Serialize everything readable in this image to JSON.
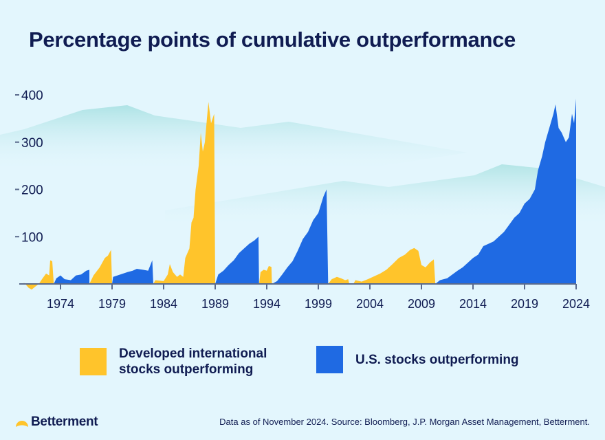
{
  "title": "Percentage points of cumulative outperformance",
  "colors": {
    "international": "#ffc42b",
    "us": "#1f6ae3",
    "text": "#101c52",
    "background": "#e3f6fd",
    "mountain": "#b5e6e8"
  },
  "chart_data": {
    "type": "area",
    "title": "Percentage points of cumulative outperformance",
    "xlim": [
      1970,
      2024
    ],
    "ylim": [
      0,
      400
    ],
    "x_ticks": [
      "1974",
      "1979",
      "1984",
      "1989",
      "1994",
      "1999",
      "2004",
      "2009",
      "2014",
      "2019",
      "2024"
    ],
    "y_ticks": [
      "100",
      "200",
      "300",
      "400"
    ],
    "grid": false,
    "legend_position": "bottom",
    "series": [
      {
        "name": "Developed international stocks outperforming",
        "key": "international",
        "segments": [
          [
            [
              1970.0,
              0
            ],
            [
              1970.5,
              2
            ],
            [
              1970.9,
              -8
            ],
            [
              1971.2,
              -12
            ],
            [
              1971.6,
              -5
            ],
            [
              1971.9,
              0
            ],
            [
              1972.2,
              10
            ],
            [
              1972.6,
              22
            ],
            [
              1972.9,
              18
            ],
            [
              1973.0,
              50
            ],
            [
              1973.2,
              48
            ],
            [
              1973.35,
              0
            ]
          ],
          [
            [
              1976.8,
              0
            ],
            [
              1977.2,
              18
            ],
            [
              1977.8,
              35
            ],
            [
              1978.3,
              55
            ],
            [
              1978.6,
              60
            ],
            [
              1978.9,
              72
            ],
            [
              1979.0,
              0
            ]
          ],
          [
            [
              1983.0,
              0
            ],
            [
              1983.2,
              8
            ],
            [
              1984.0,
              6
            ],
            [
              1984.4,
              20
            ],
            [
              1984.6,
              42
            ],
            [
              1984.9,
              25
            ],
            [
              1985.3,
              15
            ],
            [
              1985.6,
              20
            ],
            [
              1985.9,
              15
            ],
            [
              1986.1,
              55
            ],
            [
              1986.5,
              75
            ],
            [
              1986.7,
              130
            ],
            [
              1986.9,
              140
            ],
            [
              1987.1,
              200
            ],
            [
              1987.4,
              250
            ],
            [
              1987.6,
              320
            ],
            [
              1987.8,
              280
            ],
            [
              1988.0,
              300
            ],
            [
              1988.2,
              350
            ],
            [
              1988.35,
              385
            ],
            [
              1988.6,
              340
            ],
            [
              1988.9,
              360
            ],
            [
              1989.0,
              0
            ]
          ],
          [
            [
              1993.25,
              0
            ],
            [
              1993.4,
              25
            ],
            [
              1993.7,
              30
            ],
            [
              1994.0,
              28
            ],
            [
              1994.2,
              38
            ],
            [
              1994.45,
              36
            ],
            [
              1994.5,
              0
            ]
          ],
          [
            [
              1999.95,
              0
            ],
            [
              2000.3,
              10
            ],
            [
              2000.8,
              15
            ],
            [
              2001.2,
              12
            ],
            [
              2001.6,
              8
            ],
            [
              2001.9,
              10
            ],
            [
              2002.0,
              0
            ],
            [
              2002.4,
              0
            ],
            [
              2002.6,
              8
            ],
            [
              2003.2,
              5
            ],
            [
              2003.8,
              10
            ],
            [
              2004.4,
              16
            ],
            [
              2005.0,
              22
            ],
            [
              2005.6,
              30
            ],
            [
              2006.2,
              42
            ],
            [
              2006.8,
              55
            ],
            [
              2007.4,
              62
            ],
            [
              2007.9,
              72
            ],
            [
              2008.3,
              76
            ],
            [
              2008.7,
              70
            ],
            [
              2009.0,
              40
            ],
            [
              2009.4,
              35
            ],
            [
              2009.8,
              45
            ],
            [
              2010.2,
              52
            ],
            [
              2010.35,
              0
            ]
          ]
        ]
      },
      {
        "name": "U.S. stocks outperforming",
        "key": "us",
        "segments": [
          [
            [
              1973.35,
              0
            ],
            [
              1973.6,
              12
            ],
            [
              1974.0,
              18
            ],
            [
              1974.4,
              10
            ],
            [
              1975.0,
              8
            ],
            [
              1975.5,
              18
            ],
            [
              1976.0,
              20
            ],
            [
              1976.5,
              28
            ],
            [
              1976.8,
              30
            ],
            [
              1976.8,
              0
            ]
          ],
          [
            [
              1979.0,
              0
            ],
            [
              1979.1,
              15
            ],
            [
              1979.8,
              20
            ],
            [
              1980.5,
              25
            ],
            [
              1981.0,
              28
            ],
            [
              1981.4,
              32
            ],
            [
              1982.0,
              30
            ],
            [
              1982.5,
              28
            ],
            [
              1982.9,
              50
            ],
            [
              1983.0,
              0
            ]
          ],
          [
            [
              1989.0,
              0
            ],
            [
              1989.3,
              20
            ],
            [
              1989.8,
              28
            ],
            [
              1990.3,
              40
            ],
            [
              1990.8,
              50
            ],
            [
              1991.3,
              65
            ],
            [
              1991.8,
              75
            ],
            [
              1992.3,
              85
            ],
            [
              1992.8,
              92
            ],
            [
              1993.2,
              100
            ],
            [
              1993.25,
              0
            ]
          ],
          [
            [
              1994.5,
              0
            ],
            [
              1995.0,
              6
            ],
            [
              1995.5,
              20
            ],
            [
              1996.0,
              35
            ],
            [
              1996.5,
              48
            ],
            [
              1997.0,
              70
            ],
            [
              1997.5,
              95
            ],
            [
              1998.0,
              110
            ],
            [
              1998.5,
              135
            ],
            [
              1999.0,
              150
            ],
            [
              1999.5,
              185
            ],
            [
              1999.8,
              200
            ],
            [
              1999.95,
              0
            ]
          ],
          [
            [
              2010.35,
              0
            ],
            [
              2010.8,
              8
            ],
            [
              2011.5,
              12
            ],
            [
              2012.0,
              20
            ],
            [
              2012.5,
              28
            ],
            [
              2013.0,
              35
            ],
            [
              2013.5,
              45
            ],
            [
              2014.0,
              55
            ],
            [
              2014.5,
              62
            ],
            [
              2015.0,
              80
            ],
            [
              2015.5,
              85
            ],
            [
              2016.0,
              90
            ],
            [
              2016.5,
              100
            ],
            [
              2017.0,
              110
            ],
            [
              2017.5,
              125
            ],
            [
              2018.0,
              140
            ],
            [
              2018.5,
              150
            ],
            [
              2019.0,
              170
            ],
            [
              2019.5,
              180
            ],
            [
              2020.0,
              200
            ],
            [
              2020.3,
              240
            ],
            [
              2020.7,
              270
            ],
            [
              2021.0,
              300
            ],
            [
              2021.4,
              330
            ],
            [
              2021.8,
              360
            ],
            [
              2022.0,
              380
            ],
            [
              2022.3,
              330
            ],
            [
              2022.6,
              320
            ],
            [
              2023.0,
              300
            ],
            [
              2023.3,
              310
            ],
            [
              2023.6,
              360
            ],
            [
              2023.8,
              340
            ],
            [
              2024.0,
              392
            ],
            [
              2024.0,
              0
            ]
          ]
        ]
      }
    ]
  },
  "legend": {
    "international_line1": "Developed international",
    "international_line2": "stocks outperforming",
    "us": "U.S. stocks outperforming"
  },
  "footer": {
    "logo": "Betterment",
    "source": "Data as of November 2024. Source: Bloomberg, J.P. Morgan Asset Management, Betterment."
  }
}
